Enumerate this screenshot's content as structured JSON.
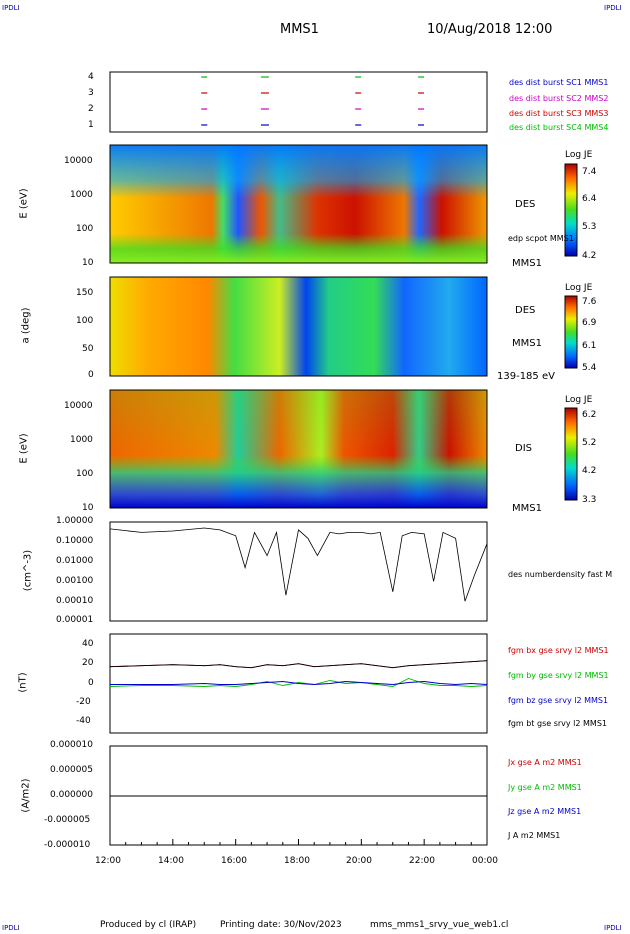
{
  "header": {
    "corner_label": "IPDLI",
    "mission": "MMS1",
    "datetime": "10/Aug/2018 12:00"
  },
  "footer": {
    "credit": "Produced by cl (IRAP)",
    "printing": "Printing date: 30/Nov/2023",
    "file": "mms_mms1_srvy_vue_web1.cl"
  },
  "x_axis": {
    "ticks": [
      "12:00",
      "14:00",
      "16:00",
      "18:00",
      "20:00",
      "22:00",
      "00:00"
    ]
  },
  "colors": {
    "red": "#cc0000",
    "green": "#00bb00",
    "blue": "#0000cc",
    "magenta": "#cc00cc",
    "black": "#000000"
  },
  "chart_data": [
    {
      "type": "scatter",
      "id": "burst",
      "yticks": [
        "4",
        "3",
        "2",
        "1"
      ],
      "legend": [
        {
          "label": "des dist burst SC1 MMS1",
          "color": "#0000cc"
        },
        {
          "label": "des dist burst SC2 MMS2",
          "color": "#cc00cc"
        },
        {
          "label": "des dist burst SC3 MMS3",
          "color": "#cc0000"
        },
        {
          "label": "des dist burst SC4 MMS4",
          "color": "#00bb00"
        }
      ],
      "intervals_hours": [
        15.0,
        16.9,
        19.9,
        21.9
      ]
    },
    {
      "type": "heatmap",
      "id": "des-energy",
      "ylabel": "E (eV)",
      "yticks": [
        "10000",
        "1000",
        "100",
        "10"
      ],
      "side_labels": [
        "DES",
        "edp scpot MMS1",
        "MMS1"
      ],
      "colorbar": {
        "title": "Log JE",
        "ticks": [
          "7.4",
          "6.4",
          "5.3",
          "4.2"
        ]
      }
    },
    {
      "type": "heatmap",
      "id": "des-pitch",
      "ylabel": "a (deg)",
      "yticks": [
        "150",
        "100",
        "50",
        "0"
      ],
      "side_labels": [
        "DES",
        "MMS1",
        "139-185 eV"
      ],
      "colorbar": {
        "title": "Log JE",
        "ticks": [
          "7.6",
          "6.9",
          "6.1",
          "5.4"
        ]
      }
    },
    {
      "type": "heatmap",
      "id": "dis-energy",
      "ylabel": "E (eV)",
      "yticks": [
        "10000",
        "1000",
        "100",
        "10"
      ],
      "side_labels": [
        "DIS",
        "MMS1"
      ],
      "colorbar": {
        "title": "Log JE",
        "ticks": [
          "6.2",
          "5.2",
          "4.2",
          "3.3"
        ]
      }
    },
    {
      "type": "line",
      "id": "density",
      "ylabel": "(cm^-3)",
      "yticks": [
        "1.00000",
        "0.10000",
        "0.01000",
        "0.00100",
        "0.00010",
        "0.00001"
      ],
      "legend": [
        {
          "label": "des numberdensity fast M",
          "color": "#000000"
        }
      ],
      "x_hours": [
        12,
        13,
        14,
        15,
        15.5,
        16,
        16.3,
        16.6,
        17,
        17.3,
        17.6,
        18,
        18.3,
        18.6,
        19,
        19.3,
        19.6,
        20,
        20.3,
        20.6,
        21,
        21.3,
        21.6,
        22,
        22.3,
        22.6,
        23,
        23.3,
        23.6,
        24
      ],
      "values": [
        0.45,
        0.3,
        0.35,
        0.5,
        0.4,
        0.2,
        0.005,
        0.3,
        0.02,
        0.3,
        0.0002,
        0.4,
        0.15,
        0.02,
        0.3,
        0.25,
        0.3,
        0.3,
        0.25,
        0.3,
        0.0003,
        0.2,
        0.3,
        0.25,
        0.001,
        0.3,
        0.15,
        0.0001,
        0.002,
        0.08
      ]
    },
    {
      "type": "line",
      "id": "fgm",
      "ylabel": "(nT)",
      "yticks": [
        "40",
        "20",
        "0",
        "-20",
        "-40"
      ],
      "ylim": [
        -50,
        50
      ],
      "legend": [
        {
          "label": "fgm bx gse srvy l2 MMS1",
          "color": "#cc0000"
        },
        {
          "label": "fgm by gse srvy l2 MMS1",
          "color": "#00bb00"
        },
        {
          "label": "fgm bz gse srvy l2 MMS1",
          "color": "#0000cc"
        },
        {
          "label": "fgm bt gse srvy l2 MMS1",
          "color": "#000000"
        }
      ],
      "x_hours": [
        12,
        13,
        14,
        15,
        15.5,
        16,
        16.5,
        17,
        17.5,
        18,
        18.5,
        19,
        19.5,
        20,
        20.5,
        21,
        21.5,
        22,
        22.5,
        23,
        23.5,
        24
      ],
      "series": [
        {
          "name": "bx",
          "values": [
            17,
            18,
            19,
            18,
            19,
            17,
            16,
            19,
            18,
            20,
            17,
            18,
            19,
            20,
            18,
            16,
            18,
            19,
            20,
            21,
            22,
            23
          ]
        },
        {
          "name": "by",
          "values": [
            -3,
            -2,
            -2,
            -3,
            -2,
            -3,
            -1,
            2,
            -2,
            1,
            -1,
            3,
            0,
            1,
            -1,
            -3,
            5,
            0,
            -2,
            -2,
            -3,
            -2
          ]
        },
        {
          "name": "bz",
          "values": [
            -1,
            -1,
            -1,
            0,
            -1,
            -1,
            0,
            1,
            2,
            0,
            -1,
            0,
            2,
            1,
            0,
            -1,
            1,
            2,
            0,
            -1,
            0,
            -1
          ]
        },
        {
          "name": "bt",
          "values": [
            17,
            18,
            19,
            18,
            19,
            17,
            16,
            19,
            18,
            20,
            17,
            18,
            19,
            20,
            18,
            16,
            18,
            19,
            20,
            21,
            22,
            23
          ]
        }
      ]
    },
    {
      "type": "line",
      "id": "current",
      "ylabel": "(A/m2)",
      "yticks": [
        "0.000010",
        "0.000005",
        "0.000000",
        "-0.000005",
        "-0.000010"
      ],
      "ylim": [
        -1e-05,
        1e-05
      ],
      "legend": [
        {
          "label": "Jx gse A m2 MMS1",
          "color": "#cc0000"
        },
        {
          "label": "Jy gse A m2 MMS1",
          "color": "#00bb00"
        },
        {
          "label": "Jz gse A m2 MMS1",
          "color": "#0000cc"
        },
        {
          "label": "J A m2 MMS1",
          "color": "#000000"
        }
      ]
    }
  ]
}
